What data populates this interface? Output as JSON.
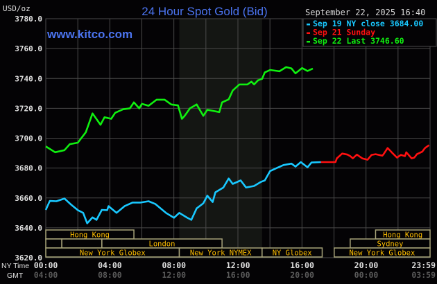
{
  "chart_data": {
    "type": "line",
    "title": "24 Hour Spot Gold (Bid)",
    "watermark": "www.kitco.com",
    "ylabel": "USD/oz",
    "timestamp": "September 22, 2025 16:40",
    "ylim": [
      3620,
      3780
    ],
    "yticks": [
      "3780.0",
      "3760.0",
      "3740.0",
      "3720.0",
      "3700.0",
      "3680.0",
      "3660.0",
      "3640.0",
      "3620.0"
    ],
    "xlim": [
      "00:00",
      "23:59"
    ],
    "grid": true,
    "legend_placement": "top-right",
    "x_rows": [
      {
        "label": "NY Time",
        "ticks": [
          "00:00",
          "04:00",
          "08:00",
          "12:00",
          "16:00",
          "20:00",
          "23:59"
        ],
        "color": "#e0e0e0"
      },
      {
        "label": "GMT",
        "ticks": [
          "04:00",
          "08:00",
          "12:00",
          "16:00",
          "20:00",
          "00:00",
          "03:59"
        ],
        "color": "#5a5a5a"
      }
    ],
    "highlight_band": [
      "08:20",
      "13:30"
    ],
    "series": [
      {
        "name": "Sep 19 NY close 3684.00",
        "color": "#19c8ff",
        "x": [
          "00:00",
          "00:15",
          "00:40",
          "01:10",
          "01:35",
          "02:00",
          "02:20",
          "02:35",
          "02:55",
          "03:10",
          "03:30",
          "03:50",
          "03:55",
          "04:25",
          "04:55",
          "05:25",
          "05:55",
          "06:25",
          "06:50",
          "07:30",
          "08:00",
          "08:20",
          "08:50",
          "09:05",
          "09:25",
          "09:50",
          "10:05",
          "10:25",
          "10:35",
          "11:05",
          "11:25",
          "11:40",
          "12:10",
          "12:30",
          "13:00",
          "13:25",
          "13:40",
          "14:00",
          "14:25",
          "14:50",
          "15:20",
          "15:35",
          "15:55",
          "16:20",
          "16:35",
          "17:10"
        ],
        "y": [
          3652,
          3658,
          3657.8,
          3659.6,
          3655.5,
          3651.8,
          3650,
          3643,
          3647,
          3645.3,
          3652,
          3651.8,
          3654.5,
          3650,
          3654.5,
          3656.9,
          3656.9,
          3657.8,
          3656,
          3650,
          3646.7,
          3650,
          3646.7,
          3645.3,
          3653,
          3656.4,
          3661.5,
          3657.3,
          3663.8,
          3667,
          3673,
          3669.4,
          3671.7,
          3667,
          3668,
          3670.7,
          3671.7,
          3678,
          3680,
          3682,
          3683,
          3681,
          3684,
          3680.5,
          3683.7,
          3684
        ]
      },
      {
        "name": "Sep 21 Sunday",
        "color": "#ff1010",
        "x": [
          "17:10",
          "18:05",
          "18:10",
          "18:30",
          "18:50",
          "19:00",
          "19:10",
          "19:25",
          "19:45",
          "20:05",
          "20:20",
          "20:35",
          "21:00",
          "21:05",
          "21:20",
          "21:30",
          "21:35",
          "21:55",
          "22:10",
          "22:25",
          "22:30",
          "22:50",
          "23:00",
          "23:10",
          "23:30",
          "23:40",
          "23:55"
        ],
        "y": [
          3684,
          3684,
          3686.5,
          3689.7,
          3689,
          3688,
          3686.5,
          3689,
          3686.5,
          3685.6,
          3688.8,
          3689.3,
          3688.3,
          3689.3,
          3693.4,
          3691.6,
          3690.6,
          3687,
          3688.8,
          3688,
          3690.6,
          3686.5,
          3687,
          3689.3,
          3691,
          3693.4,
          3695.3
        ]
      },
      {
        "name": "Sep 22 Last 3746.60",
        "color": "#10f010",
        "x": [
          "00:00",
          "00:35",
          "01:10",
          "01:30",
          "02:00",
          "02:30",
          "02:55",
          "03:25",
          "03:40",
          "04:05",
          "04:20",
          "04:50",
          "05:15",
          "05:30",
          "05:50",
          "06:00",
          "06:25",
          "06:55",
          "07:25",
          "07:50",
          "08:15",
          "08:30",
          "08:40",
          "09:00",
          "09:25",
          "09:50",
          "10:05",
          "10:50",
          "11:00",
          "11:25",
          "11:40",
          "12:05",
          "12:35",
          "12:50",
          "13:00",
          "13:15",
          "13:30",
          "13:40",
          "14:00",
          "14:35",
          "15:00",
          "15:20",
          "15:35",
          "16:00",
          "16:20",
          "16:40"
        ],
        "y": [
          3694.5,
          3690.6,
          3692,
          3696,
          3697,
          3704,
          3716.6,
          3709,
          3714,
          3713,
          3717,
          3719.4,
          3720,
          3724,
          3720,
          3723,
          3721.7,
          3725.8,
          3725.8,
          3722.6,
          3722,
          3713,
          3715,
          3720,
          3722.6,
          3715,
          3719,
          3717.5,
          3724,
          3726,
          3731.9,
          3736,
          3736,
          3737.9,
          3736,
          3738.8,
          3739.7,
          3744,
          3745.7,
          3744.8,
          3747.6,
          3746.7,
          3743.4,
          3747,
          3745,
          3746.6
        ]
      }
    ],
    "sessions": [
      {
        "row": 0,
        "label": "Hong Kong",
        "start": "00:00",
        "end": "05:30"
      },
      {
        "row": 0,
        "label": "Hong Kong",
        "start": "20:35",
        "end": "23:59"
      },
      {
        "row": 1,
        "label": "",
        "start": "00:00",
        "end": "01:00"
      },
      {
        "row": 1,
        "label": "",
        "start": "01:00",
        "end": "03:30"
      },
      {
        "row": 1,
        "label": "London",
        "start": "03:30",
        "end": "11:00"
      },
      {
        "row": 1,
        "label": "Sydney",
        "start": "19:00",
        "end": "23:59"
      },
      {
        "row": 2,
        "label": "New York Globex",
        "start": "00:00",
        "end": "08:20"
      },
      {
        "row": 2,
        "label": "New York NYMEX",
        "start": "08:20",
        "end": "13:30"
      },
      {
        "row": 2,
        "label": "NY Globex",
        "start": "13:30",
        "end": "17:15"
      },
      {
        "row": 2,
        "label": "New York Globex",
        "start": "18:00",
        "end": "23:59"
      }
    ],
    "colors": {
      "background": "#040305",
      "grid": "#4a4a4a",
      "band": "#141613",
      "session_border": "#a8a47a",
      "session_text": "#ffbf00",
      "title": "#4b74f0",
      "axis_text": "#e0e0e0"
    }
  }
}
